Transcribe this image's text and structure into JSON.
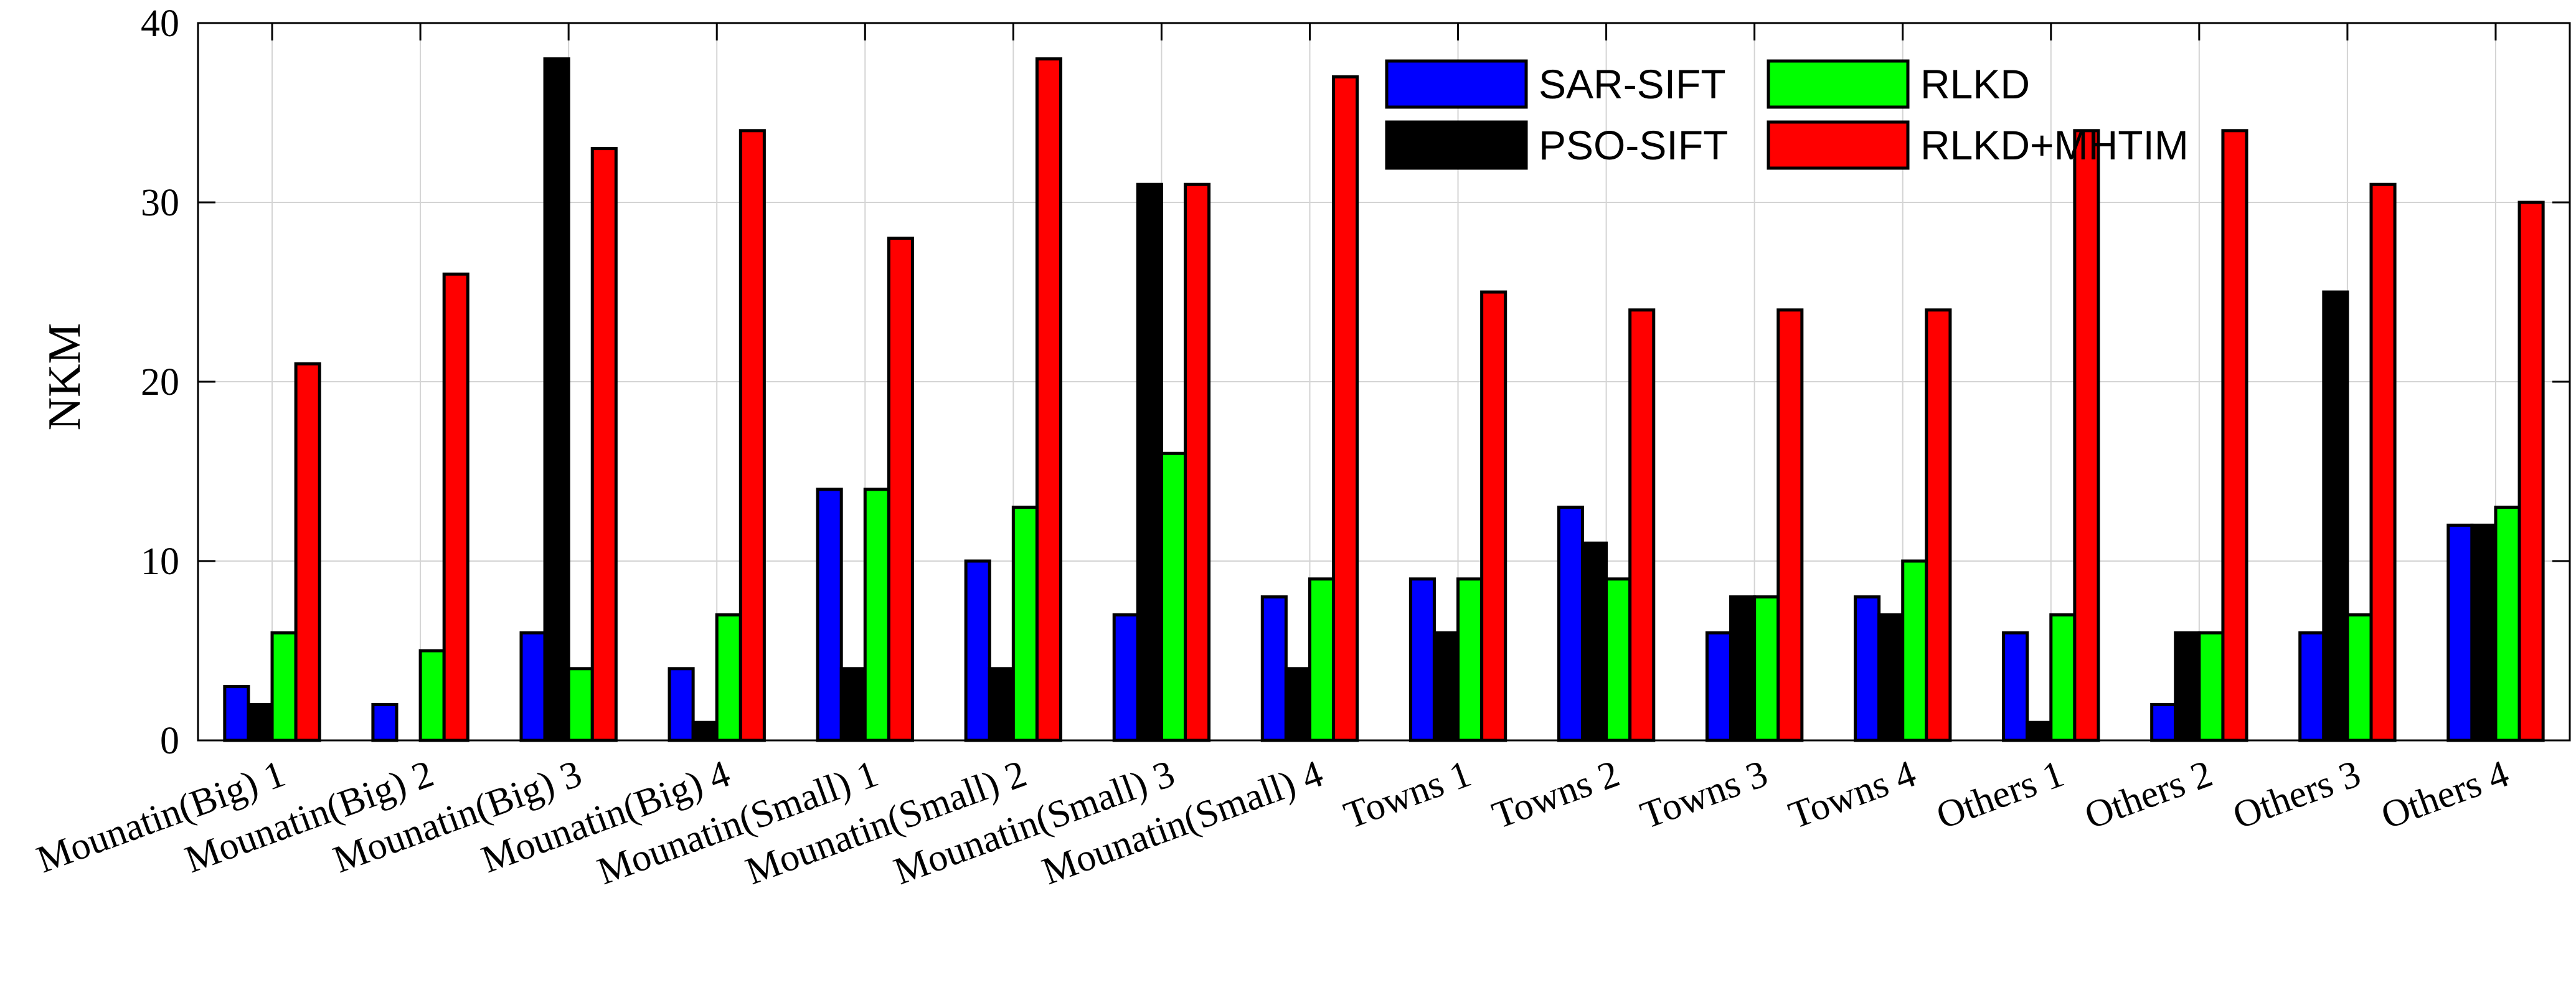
{
  "chart_data": {
    "type": "bar",
    "ylabel": "NKM",
    "xlabel": "",
    "ylim": [
      0,
      40
    ],
    "yticks": [
      0,
      10,
      20,
      30,
      40
    ],
    "grid": true,
    "legend_position": "top-center",
    "categories": [
      "Mounatin(Big) 1",
      "Mounatin(Big) 2",
      "Mounatin(Big) 3",
      "Mounatin(Big) 4",
      "Mounatin(Small) 1",
      "Mounatin(Small) 2",
      "Mounatin(Small) 3",
      "Mounatin(Small) 4",
      "Towns 1",
      "Towns 2",
      "Towns 3",
      "Towns 4",
      "Others 1",
      "Others 2",
      "Others 3",
      "Others 4"
    ],
    "series": [
      {
        "name": "SAR-SIFT",
        "color": "#0000ff",
        "values": [
          3,
          2,
          6,
          4,
          14,
          10,
          7,
          8,
          9,
          13,
          6,
          8,
          6,
          2,
          6,
          12
        ]
      },
      {
        "name": "PSO-SIFT",
        "color": "#000000",
        "values": [
          2,
          0,
          38,
          1,
          4,
          4,
          31,
          4,
          6,
          11,
          8,
          7,
          1,
          6,
          25,
          12
        ]
      },
      {
        "name": "RLKD",
        "color": "#00ff00",
        "values": [
          6,
          5,
          4,
          7,
          14,
          13,
          16,
          9,
          9,
          9,
          8,
          10,
          7,
          6,
          7,
          13
        ]
      },
      {
        "name": "RLKD+MHTIM",
        "color": "#ff0000",
        "values": [
          21,
          26,
          33,
          34,
          28,
          38,
          31,
          37,
          25,
          24,
          24,
          24,
          34,
          34,
          31,
          30
        ]
      }
    ]
  }
}
